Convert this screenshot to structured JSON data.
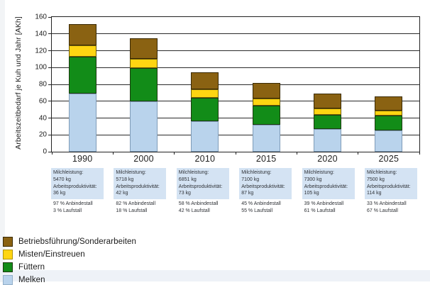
{
  "chart_data": {
    "type": "bar",
    "stacked": true,
    "ylabel": "Arbeitszeitbedarf je Kuh und Jahr [AKh]",
    "xlabel": "",
    "ylim": [
      0,
      160
    ],
    "yticks": [
      0,
      20,
      40,
      60,
      80,
      100,
      120,
      140,
      160
    ],
    "grid": true,
    "legend_position": "bottom-left",
    "categories": [
      "1990",
      "2000",
      "2010",
      "2015",
      "2020",
      "2025"
    ],
    "series": [
      {
        "name": "Melken",
        "color": "#b9d3ec",
        "border": "#7f9cb8",
        "values": [
          69,
          60,
          36,
          32,
          27,
          25
        ]
      },
      {
        "name": "Füttern",
        "color": "#128c18",
        "border": "#1c3a10",
        "values": [
          44,
          39,
          28,
          23,
          17,
          18
        ]
      },
      {
        "name": "Misten/Einstreuen",
        "color": "#ffd512",
        "border": "#6e5c07",
        "values": [
          13,
          11,
          10,
          8,
          7,
          6
        ]
      },
      {
        "name": "Betriebsführung/Sonderarbeiten",
        "color": "#8a6212",
        "border": "#3a2a05",
        "values": [
          26,
          25,
          20,
          19,
          18,
          17
        ]
      }
    ],
    "totals": [
      152,
      135,
      94,
      82,
      69,
      66
    ],
    "legend": [
      {
        "label": "Betriebsführung/Sonderarbeiten",
        "color": "#8a6212",
        "border": "#3a2a05"
      },
      {
        "label": "Misten/Einstreuen",
        "color": "#ffd512",
        "border": "#b09408"
      },
      {
        "label": "Füttern",
        "color": "#128c18",
        "border": "#1c3a10"
      },
      {
        "label": "Melken",
        "color": "#b9d3ec",
        "border": "#93afc9"
      }
    ]
  },
  "info_boxes": {
    "milk_label": "Milchleistung:",
    "productivity_label": "Arbeitsproduktivität:",
    "items": [
      {
        "year": "1990",
        "milk": "5470 kg",
        "productivity": "36 kg",
        "anbindestall": "97 % Anbindestall",
        "laufstall": "3 % Laufstall"
      },
      {
        "year": "2000",
        "milk": "5718 kg",
        "productivity": "42 kg",
        "anbindestall": "82 % Anbindestall",
        "laufstall": "18 % Laufstall"
      },
      {
        "year": "2010",
        "milk": "6851 kg",
        "productivity": "73 kg",
        "anbindestall": "58 % Anbindestall",
        "laufstall": "42 % Laufstall"
      },
      {
        "year": "2015",
        "milk": "7100 kg",
        "productivity": "87 kg",
        "anbindestall": "45 % Anbindestall",
        "laufstall": "55 % Laufstall"
      },
      {
        "year": "2020",
        "milk": "7300 kg",
        "productivity": "105 kg",
        "anbindestall": "39 % Anbindestall",
        "laufstall": "61 % Laufstall"
      },
      {
        "year": "2025",
        "milk": "7500 kg",
        "productivity": "114 kg",
        "anbindestall": "33 % Anbindestall",
        "laufstall": "67 % Laufstall"
      }
    ]
  }
}
